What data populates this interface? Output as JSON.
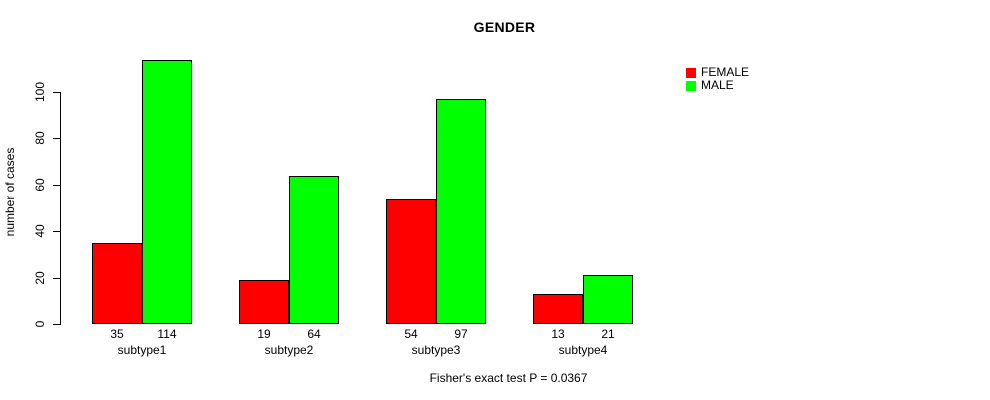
{
  "title": "GENDER",
  "ylabel": "number of cases",
  "caption": "Fisher's exact test P = 0.0367",
  "legend": {
    "items": [
      {
        "label": "FEMALE",
        "color": "#ff0000"
      },
      {
        "label": "MALE",
        "color": "#00ff00"
      }
    ]
  },
  "chart_data": {
    "type": "bar",
    "grouped": true,
    "title": "GENDER",
    "xlabel": "",
    "ylabel": "number of cases",
    "categories": [
      "subtype1",
      "subtype2",
      "subtype3",
      "subtype4"
    ],
    "series": [
      {
        "name": "FEMALE",
        "color": "#ff0000",
        "values": [
          35,
          19,
          54,
          13
        ]
      },
      {
        "name": "MALE",
        "color": "#00ff00",
        "values": [
          114,
          64,
          97,
          21
        ]
      }
    ],
    "bar_value_labels": [
      [
        "35",
        "114"
      ],
      [
        "19",
        "64"
      ],
      [
        "54",
        "97"
      ],
      [
        "13",
        "21"
      ]
    ],
    "yticks": [
      0,
      20,
      40,
      60,
      80,
      100
    ],
    "ylim": [
      0,
      115
    ],
    "grid": false,
    "legend_position": "top-right",
    "annotation": "Fisher's exact test P = 0.0367"
  }
}
